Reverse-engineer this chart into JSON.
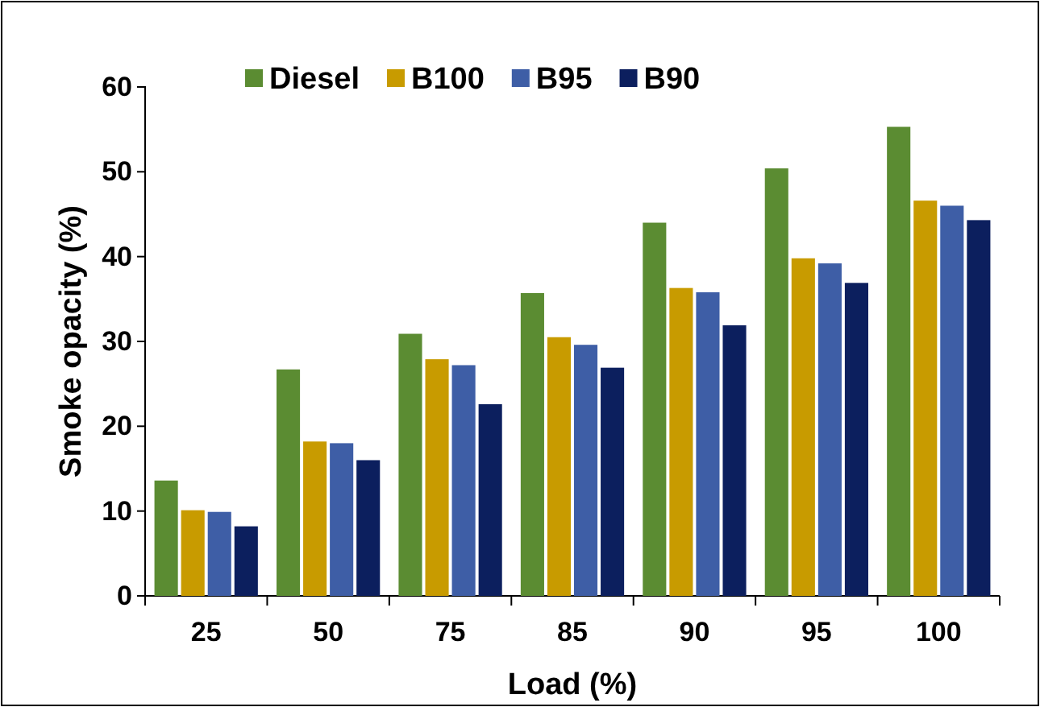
{
  "chart_data": {
    "type": "bar",
    "xlabel": "Load (%)",
    "ylabel": "Smoke opacity (%)",
    "categories": [
      "25",
      "50",
      "75",
      "85",
      "90",
      "95",
      "100"
    ],
    "series": [
      {
        "name": "Diesel",
        "color": "#5b8c32",
        "values": [
          13.6,
          26.7,
          30.9,
          35.7,
          44.0,
          50.4,
          55.3
        ]
      },
      {
        "name": "B100",
        "color": "#c89b00",
        "values": [
          10.1,
          18.2,
          27.9,
          30.5,
          36.3,
          39.8,
          46.6
        ]
      },
      {
        "name": "B95",
        "color": "#3e5ea6",
        "values": [
          9.9,
          18.0,
          27.2,
          29.6,
          35.8,
          39.2,
          46.0
        ]
      },
      {
        "name": "B90",
        "color": "#0c1f5e",
        "values": [
          8.2,
          16.0,
          22.6,
          26.9,
          31.9,
          36.9,
          44.3
        ]
      }
    ],
    "ylim": [
      0,
      60
    ],
    "yticks": [
      0,
      10,
      20,
      30,
      40,
      50,
      60
    ],
    "grid": false,
    "legend": "top left"
  }
}
